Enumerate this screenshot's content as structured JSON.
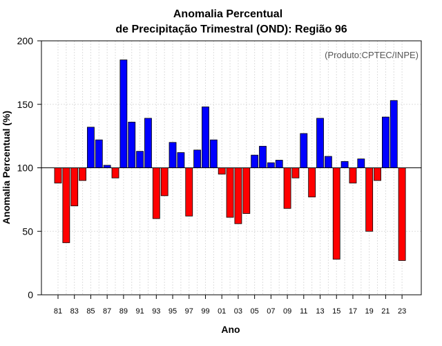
{
  "chart_data": {
    "type": "bar",
    "title_line1": "Anomalia Percentual",
    "title_line2": "de Precipitação Trimestral (OND): Região 96",
    "xlabel": "Ano",
    "ylabel": "Anomalia Percentual (%)",
    "credit": "(Produto:CPTEC/INPE)",
    "ylim": [
      0,
      200
    ],
    "yticks": [
      "0",
      "50",
      "100",
      "150",
      "200"
    ],
    "baseline": 100,
    "grid": true,
    "positive_color": "#0000ff",
    "negative_color": "#ff0000",
    "categories": [
      "81",
      "82",
      "83",
      "84",
      "85",
      "86",
      "87",
      "88",
      "89",
      "90",
      "91",
      "92",
      "93",
      "94",
      "95",
      "96",
      "97",
      "98",
      "99",
      "00",
      "01",
      "02",
      "03",
      "04",
      "05",
      "06",
      "07",
      "08",
      "09",
      "10",
      "11",
      "12",
      "13",
      "14",
      "15",
      "16",
      "17",
      "18",
      "19",
      "20",
      "21",
      "22",
      "23"
    ],
    "xtick_labels": [
      "81",
      "83",
      "85",
      "87",
      "89",
      "91",
      "93",
      "95",
      "97",
      "99",
      "01",
      "03",
      "05",
      "07",
      "09",
      "11",
      "13",
      "15",
      "17",
      "19",
      "21",
      "23"
    ],
    "values": [
      88,
      41,
      70,
      90,
      132,
      122,
      102,
      92,
      185,
      136,
      113,
      139,
      60,
      78,
      120,
      112,
      62,
      114,
      148,
      122,
      95,
      61,
      56,
      64,
      110,
      117,
      104,
      106,
      68,
      92,
      127,
      77,
      139,
      109,
      28,
      105,
      88,
      107,
      50,
      90,
      140,
      153,
      27
    ]
  }
}
